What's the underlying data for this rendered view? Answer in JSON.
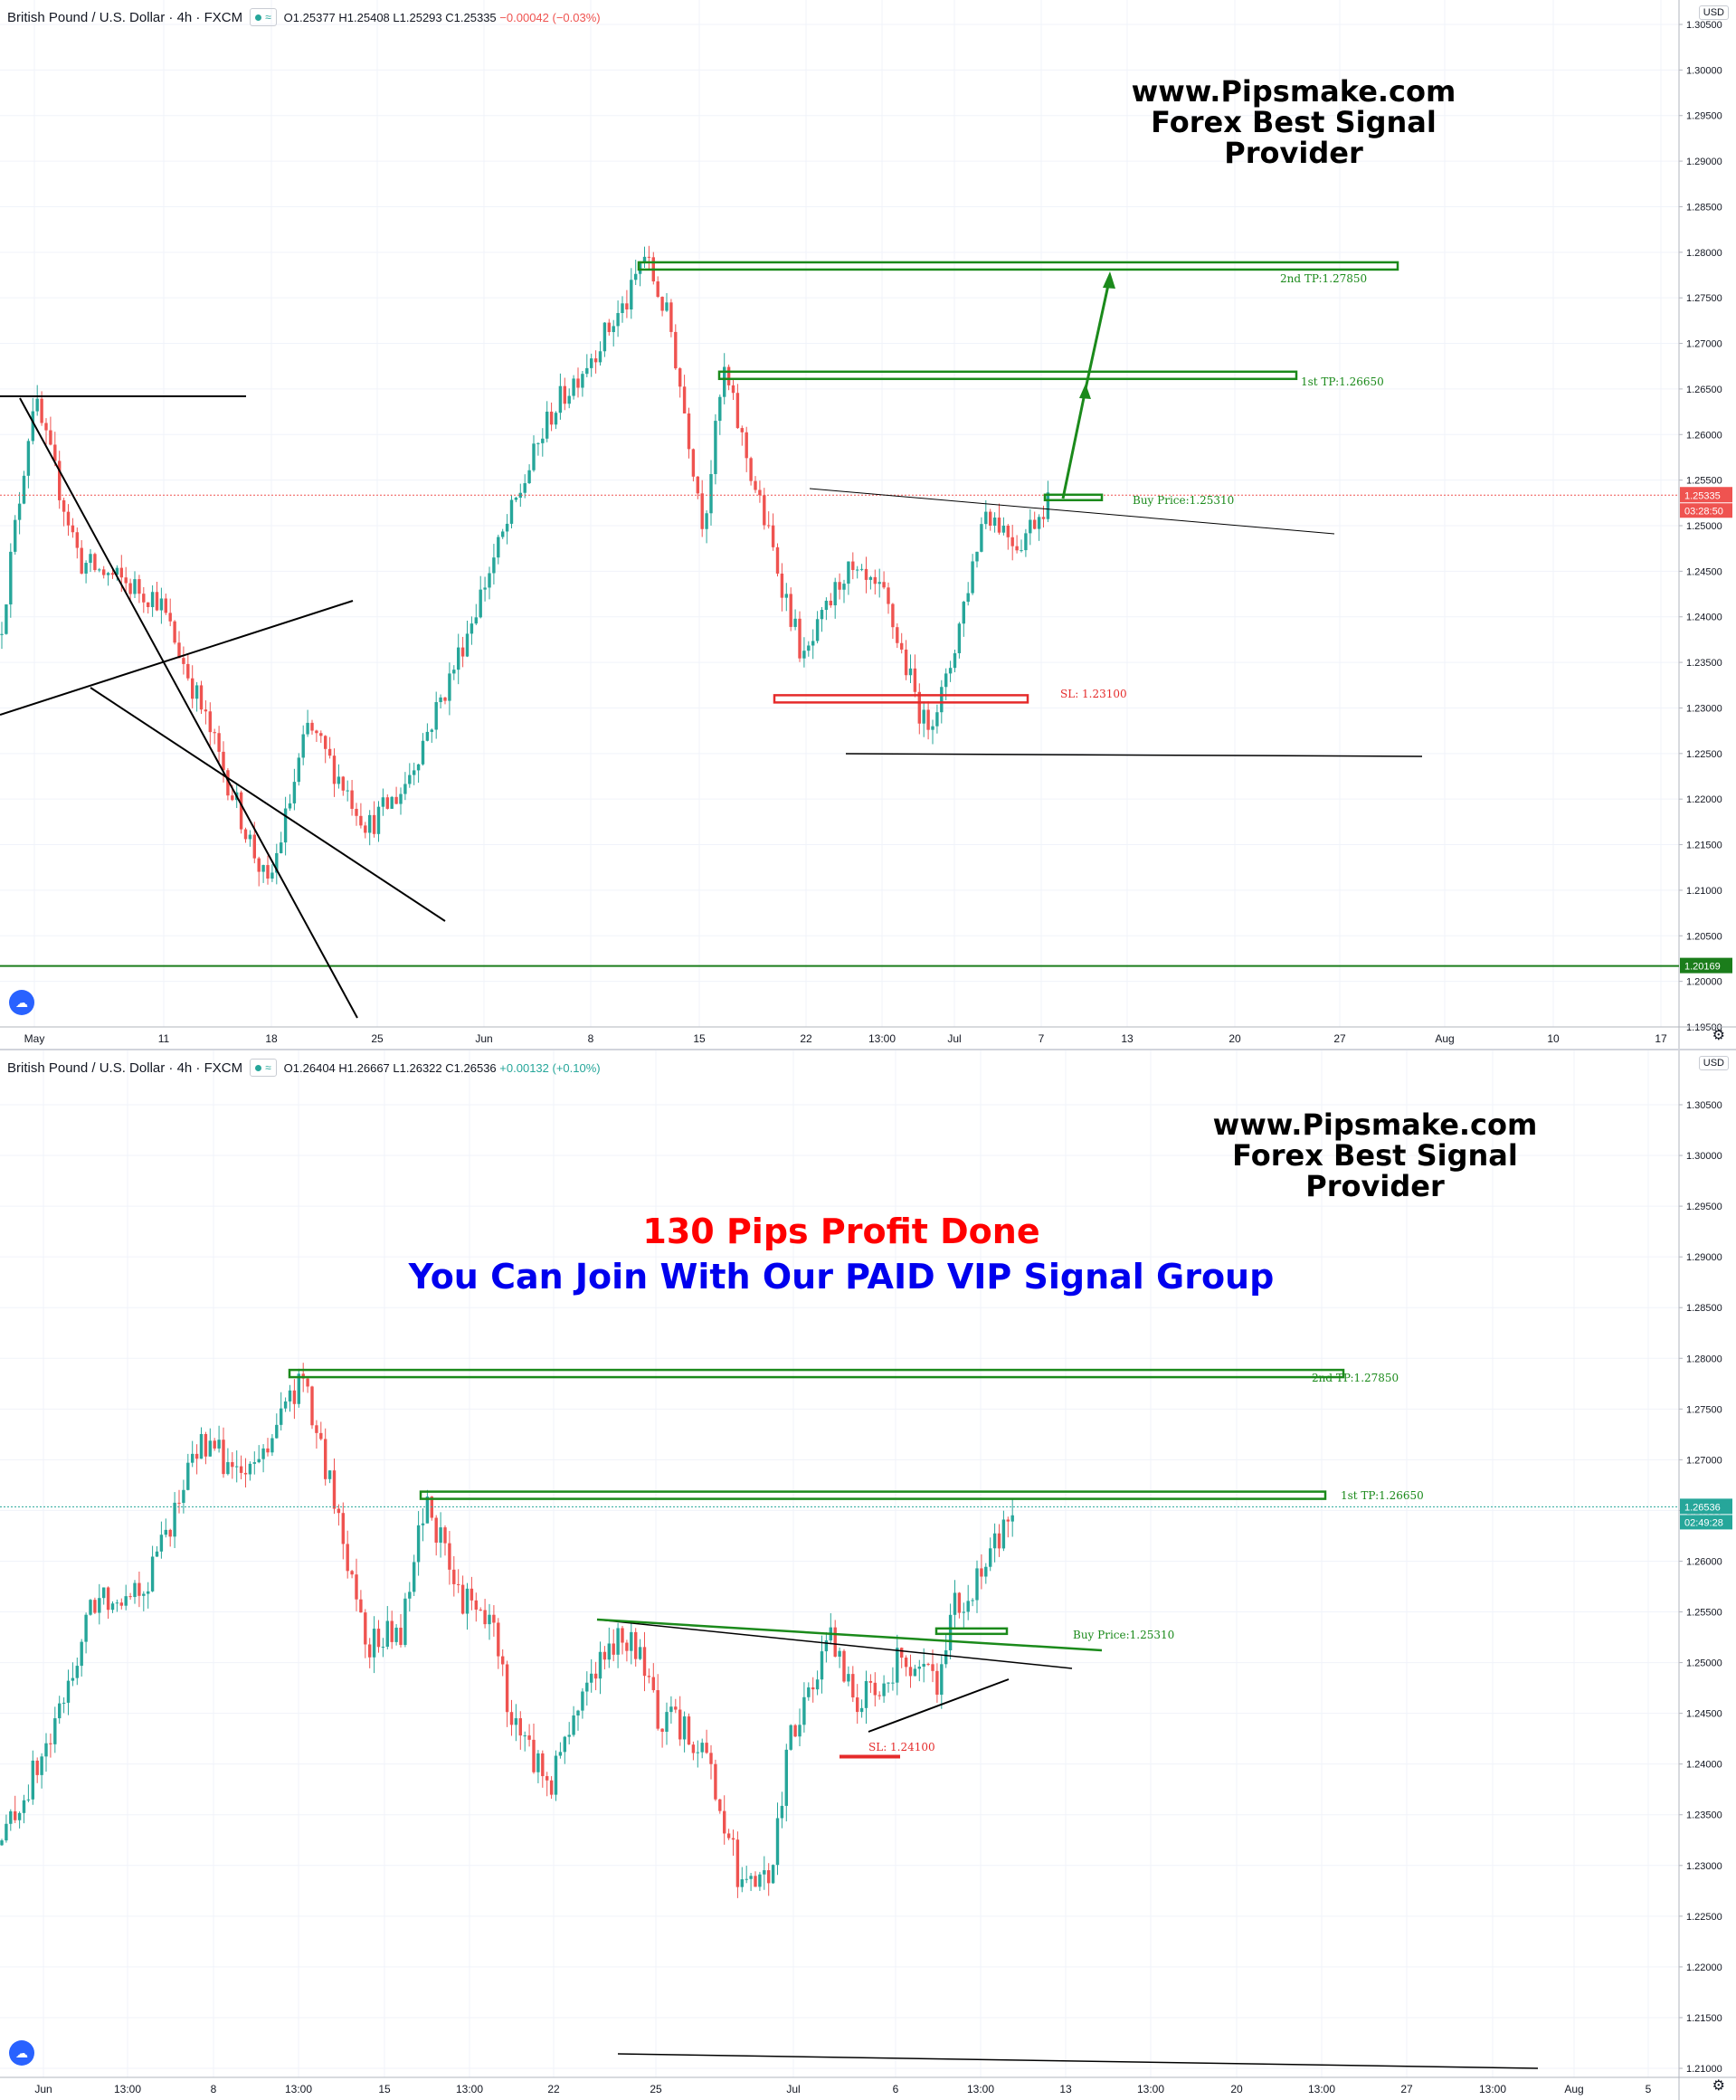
{
  "panels": [
    {
      "header": {
        "symbol": "British Pound / U.S. Dollar · 4h · FXCM",
        "ohlc": {
          "o": "O1.25377",
          "h": "H1.25408",
          "l": "L1.25293",
          "c": "C1.25335",
          "chg": "−0.00042 (−0.03%)"
        },
        "chg_sign": "neg"
      },
      "watermark": [
        "www.Pipsmake.com",
        "Forex Best Signal Provider"
      ],
      "promo": [],
      "currency": "USD",
      "chart_data": {
        "type": "candlestick",
        "y_ticks": [
          "1.30500",
          "1.30000",
          "1.29500",
          "1.29000",
          "1.28500",
          "1.28000",
          "1.27500",
          "1.27000",
          "1.26500",
          "1.26000",
          "1.25500",
          "1.25000",
          "1.24500",
          "1.24000",
          "1.23500",
          "1.23000",
          "1.22500",
          "1.22000",
          "1.21500",
          "1.21000",
          "1.20500",
          "1.20000",
          "1.19500"
        ],
        "ylim": [
          1.1945,
          1.3066
        ],
        "x_ticks": [
          "May",
          "11",
          "18",
          "25",
          "Jun",
          "8",
          "15",
          "22",
          "13:00",
          "Jul",
          "7",
          "13",
          "20",
          "27",
          "Aug",
          "10",
          "17"
        ],
        "last_price": {
          "value": 1.25335,
          "label": "1.25335",
          "countdown": "03:28:50"
        },
        "support_line": {
          "value": 1.20169,
          "label": "1.20169"
        },
        "labels": {
          "tp2": "2nd TP:1.27850",
          "tp1": "1st TP:1.26650",
          "buy": "Buy Price:1.25310",
          "sl": "SL: 1.23100"
        },
        "levels": {
          "tp2": 1.2785,
          "tp1": 1.2665,
          "buy": 1.2531,
          "sl": 1.231
        },
        "anchors": [
          [
            0,
            1.238
          ],
          [
            25,
            1.264
          ],
          [
            60,
            1.246
          ],
          [
            118,
            1.242
          ],
          [
            145,
            1.232
          ],
          [
            200,
            1.21
          ],
          [
            230,
            1.228
          ],
          [
            275,
            1.217
          ],
          [
            300,
            1.221
          ],
          [
            335,
            1.233
          ],
          [
            365,
            1.245
          ],
          [
            410,
            1.262
          ],
          [
            470,
            1.275
          ],
          [
            480,
            1.28
          ],
          [
            500,
            1.272
          ],
          [
            525,
            1.25
          ],
          [
            540,
            1.267
          ],
          [
            560,
            1.256
          ],
          [
            600,
            1.235
          ],
          [
            630,
            1.245
          ],
          [
            660,
            1.242
          ],
          [
            690,
            1.228
          ],
          [
            705,
            1.232
          ],
          [
            735,
            1.252
          ],
          [
            760,
            1.248
          ],
          [
            783,
            1.2533
          ]
        ]
      }
    },
    {
      "header": {
        "symbol": "British Pound / U.S. Dollar · 4h · FXCM",
        "ohlc": {
          "o": "O1.26404",
          "h": "H1.26667",
          "l": "L1.26322",
          "c": "C1.26536",
          "chg": "+0.00132 (+0.10%)"
        },
        "chg_sign": "pos"
      },
      "watermark": [
        "www.Pipsmake.com",
        "Forex Best Signal Provider"
      ],
      "promo": [
        "130 Pips Profit Done",
        "You Can Join With Our PAID VIP Signal Group"
      ],
      "currency": "USD",
      "chart_data": {
        "type": "candlestick",
        "y_ticks": [
          "1.30500",
          "1.30000",
          "1.29500",
          "1.29000",
          "1.28500",
          "1.28000",
          "1.27500",
          "1.27000",
          "1.26500",
          "1.26000",
          "1.25500",
          "1.25000",
          "1.24500",
          "1.24000",
          "1.23500",
          "1.23000",
          "1.22500",
          "1.22000",
          "1.21500",
          "1.21000"
        ],
        "ylim": [
          1.2092,
          1.3104
        ],
        "x_ticks": [
          "Jun",
          "13:00",
          "8",
          "13:00",
          "15",
          "13:00",
          "22",
          "25",
          "Jul",
          "6",
          "13:00",
          "13",
          "13:00",
          "20",
          "13:00",
          "27",
          "13:00",
          "Aug",
          "5"
        ],
        "last_price": {
          "value": 1.26536,
          "label": "1.26536",
          "countdown": "02:49:28"
        },
        "support_line": null,
        "labels": {
          "tp2": "2nd TP:1.27850",
          "tp1": "1st TP:1.26650",
          "buy": "Buy Price:1.25310",
          "sl": "SL: 1.24100"
        },
        "levels": {
          "tp2": 1.2785,
          "tp1": 1.2665,
          "buy": 1.2531,
          "sl": 1.241
        },
        "anchors": [
          [
            0,
            1.232
          ],
          [
            40,
            1.243
          ],
          [
            70,
            1.256
          ],
          [
            110,
            1.258
          ],
          [
            150,
            1.272
          ],
          [
            185,
            1.268
          ],
          [
            225,
            1.278
          ],
          [
            245,
            1.268
          ],
          [
            275,
            1.252
          ],
          [
            300,
            1.253
          ],
          [
            318,
            1.2665
          ],
          [
            340,
            1.257
          ],
          [
            370,
            1.253
          ],
          [
            380,
            1.245
          ],
          [
            410,
            1.238
          ],
          [
            440,
            1.249
          ],
          [
            470,
            1.253
          ],
          [
            490,
            1.245
          ],
          [
            525,
            1.242
          ],
          [
            555,
            1.227
          ],
          [
            575,
            1.229
          ],
          [
            590,
            1.243
          ],
          [
            620,
            1.252
          ],
          [
            640,
            1.246
          ],
          [
            670,
            1.25
          ],
          [
            700,
            1.248
          ],
          [
            710,
            1.255
          ],
          [
            735,
            1.259
          ],
          [
            756,
            1.2654
          ]
        ]
      }
    }
  ]
}
